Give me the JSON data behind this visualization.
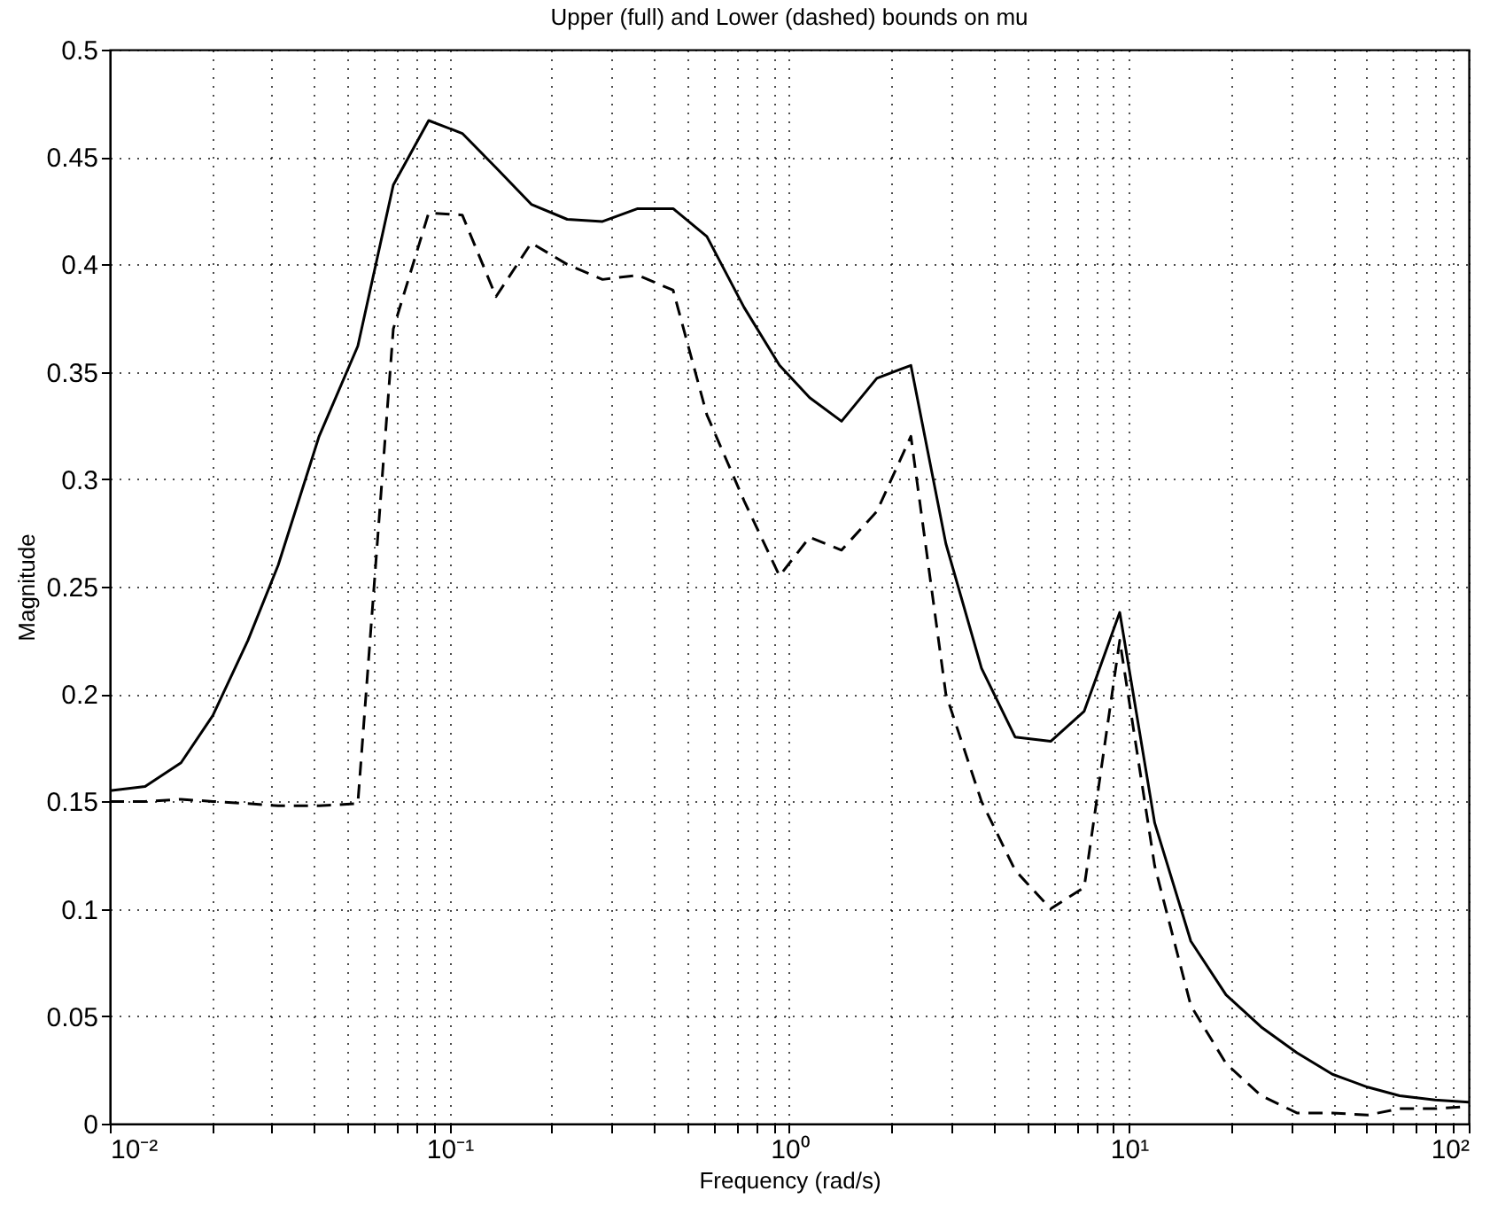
{
  "chart_data": {
    "type": "line",
    "title": "Upper (full) and Lower (dashed) bounds on mu",
    "xlabel": "Frequency (rad/s)",
    "ylabel": "Magnitude",
    "log": "x",
    "grid": true,
    "marker": "none",
    "x": [
      0.01,
      0.0127,
      0.0162,
      0.0201,
      0.0255,
      0.0313,
      0.0413,
      0.0537,
      0.0683,
      0.0868,
      0.109,
      0.137,
      0.174,
      0.222,
      0.282,
      0.358,
      0.455,
      0.572,
      0.736,
      0.936,
      1.148,
      1.425,
      1.81,
      2.28,
      2.89,
      3.68,
      4.62,
      5.88,
      7.38,
      9.39,
      11.9,
      15.2,
      19.3,
      24.5,
      31.2,
      39.7,
      50.4,
      62.6,
      79.6,
      100
    ],
    "series": [
      {
        "color": "#000000",
        "line_style": "solid",
        "values": [
          0.155,
          0.157,
          0.168,
          0.19,
          0.225,
          0.26,
          0.32,
          0.362,
          0.437,
          0.467,
          0.461,
          0.445,
          0.428,
          0.421,
          0.42,
          0.426,
          0.426,
          0.413,
          0.38,
          0.353,
          0.338,
          0.327,
          0.347,
          0.353,
          0.27,
          0.212,
          0.18,
          0.178,
          0.192,
          0.238,
          0.14,
          0.085,
          0.06,
          0.045,
          0.033,
          0.023,
          0.017,
          0.013,
          0.011,
          0.01
        ]
      },
      {
        "color": "#000000",
        "line_style": "dashed",
        "values": [
          0.15,
          0.15,
          0.151,
          0.15,
          0.149,
          0.148,
          0.148,
          0.149,
          0.37,
          0.424,
          0.423,
          0.385,
          0.41,
          0.4,
          0.393,
          0.395,
          0.388,
          0.33,
          0.29,
          0.255,
          0.273,
          0.267,
          0.285,
          0.32,
          0.2,
          0.15,
          0.118,
          0.1,
          0.11,
          0.225,
          0.12,
          0.055,
          0.028,
          0.013,
          0.005,
          0.005,
          0.004,
          0.007,
          0.007,
          0.008
        ]
      }
    ],
    "xlim": [
      0.01,
      100
    ],
    "xticks": [
      {
        "value": 0.01,
        "label": "10⁻²"
      },
      {
        "value": 0.02,
        "label": null
      },
      {
        "value": 0.03,
        "label": null
      },
      {
        "value": 0.04,
        "label": null
      },
      {
        "value": 0.05,
        "label": null
      },
      {
        "value": 0.06,
        "label": null
      },
      {
        "value": 0.07,
        "label": null
      },
      {
        "value": 0.08,
        "label": null
      },
      {
        "value": 0.09,
        "label": null
      },
      {
        "value": 0.1,
        "label": "10⁻¹"
      },
      {
        "value": 0.2,
        "label": null
      },
      {
        "value": 0.3,
        "label": null
      },
      {
        "value": 0.4,
        "label": null
      },
      {
        "value": 0.5,
        "label": null
      },
      {
        "value": 0.6,
        "label": null
      },
      {
        "value": 0.7,
        "label": null
      },
      {
        "value": 0.8,
        "label": null
      },
      {
        "value": 0.9,
        "label": null
      },
      {
        "value": 1,
        "label": "10⁰"
      },
      {
        "value": 2,
        "label": null
      },
      {
        "value": 3,
        "label": null
      },
      {
        "value": 4,
        "label": null
      },
      {
        "value": 5,
        "label": null
      },
      {
        "value": 6,
        "label": null
      },
      {
        "value": 7,
        "label": null
      },
      {
        "value": 8,
        "label": null
      },
      {
        "value": 9,
        "label": null
      },
      {
        "value": 10,
        "label": "10¹"
      },
      {
        "value": 20,
        "label": null
      },
      {
        "value": 30,
        "label": null
      },
      {
        "value": 40,
        "label": null
      },
      {
        "value": 50,
        "label": null
      },
      {
        "value": 60,
        "label": null
      },
      {
        "value": 70,
        "label": null
      },
      {
        "value": 80,
        "label": null
      },
      {
        "value": 90,
        "label": null
      },
      {
        "value": 100,
        "label": "10²"
      }
    ],
    "ylim": [
      0,
      0.5
    ],
    "yticks": [
      0,
      0.05,
      0.1,
      0.15,
      0.2,
      0.25,
      0.3,
      0.35,
      0.4,
      0.45,
      0.5
    ]
  }
}
